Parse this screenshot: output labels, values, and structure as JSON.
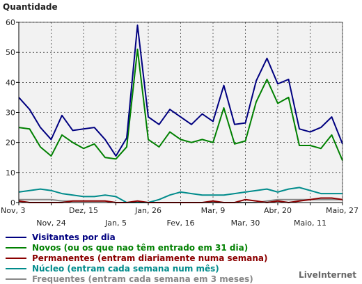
{
  "chart_data": {
    "type": "line",
    "ylabel": "Quantidade",
    "ylim": [
      0,
      60
    ],
    "yticks": [
      0,
      10,
      20,
      30,
      40,
      50,
      60
    ],
    "grid": true,
    "x_tick_labels_upper": [
      "Nov, 3",
      "Dez, 15",
      "Jan, 26",
      "Mar, 9",
      "Abr, 20",
      "Maio, 27"
    ],
    "x_tick_labels_lower": [
      "Nov, 24",
      "Jan, 5",
      "Fev, 16",
      "Mar, 30",
      "Maio, 11"
    ],
    "legend_position": "bottom-left",
    "series": [
      {
        "name": "Visitantes por dia",
        "color": "#000080",
        "values": [
          35,
          31,
          25,
          21,
          29,
          24,
          24.5,
          25,
          21,
          15.5,
          21.5,
          59,
          28.5,
          26,
          31,
          28.5,
          26,
          29.5,
          27,
          39,
          26,
          26.5,
          40.5,
          48,
          39.5,
          41,
          24.5,
          23.5,
          25,
          28.5,
          19.5
        ]
      },
      {
        "name": "Novos (ou os que nao têm entrado em 31 dia)",
        "color": "#008000",
        "values": [
          25,
          24.5,
          18.5,
          15.5,
          22.5,
          20,
          18,
          19.5,
          15,
          14.5,
          18.5,
          51,
          21,
          18.5,
          23.5,
          21,
          20,
          21,
          20,
          31.5,
          19.5,
          20.5,
          33.5,
          41,
          33,
          35,
          19,
          19,
          18,
          22.5,
          14
        ]
      },
      {
        "name": "Permanentes (entram diariamente numa semana)",
        "color": "#8b0000",
        "values": [
          0.5,
          0,
          0,
          0,
          0,
          0.5,
          0.5,
          0.5,
          0.5,
          0,
          0,
          0.5,
          0,
          0,
          0,
          0,
          0,
          0,
          0.5,
          0,
          0,
          1,
          0.5,
          0,
          0.5,
          0,
          0.5,
          1,
          1.5,
          1.5,
          1
        ]
      },
      {
        "name": "Núcleo (entram cada semana num mês)",
        "color": "#008b8b",
        "values": [
          3.5,
          4,
          4.5,
          4,
          3,
          2.5,
          2,
          2,
          2.5,
          2,
          0,
          0,
          0,
          1,
          2.5,
          3.5,
          3,
          2.5,
          2.5,
          2.5,
          3,
          3.5,
          4,
          4.5,
          3.5,
          4.5,
          5,
          4,
          3,
          3,
          3
        ]
      },
      {
        "name": "Frequentes (entram cada semana em 3 meses)",
        "color": "#888888",
        "values": [
          1,
          1,
          1,
          1,
          0.5,
          0.5,
          0.5,
          0.5,
          0.5,
          0,
          0,
          0,
          0,
          0,
          0,
          0,
          0,
          0,
          0,
          0,
          0,
          0,
          0,
          0.5,
          1,
          1,
          1,
          1,
          1,
          1,
          1
        ]
      }
    ]
  },
  "brand": "LiveInternet"
}
